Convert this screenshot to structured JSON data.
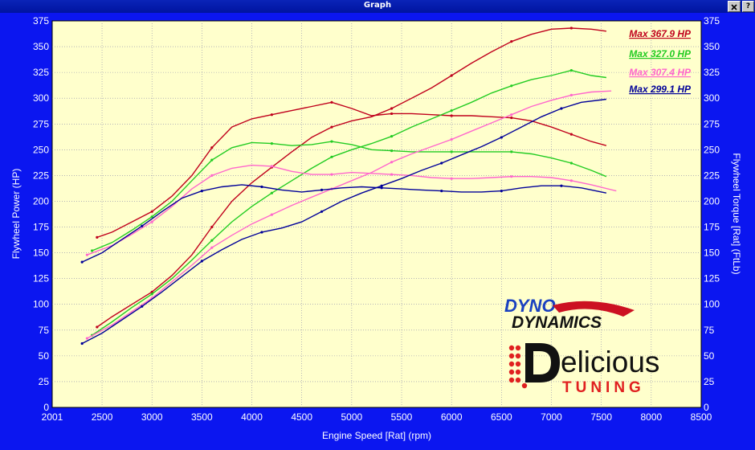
{
  "window": {
    "title": "Graph"
  },
  "chart_data": {
    "type": "line",
    "xlabel": "Engine Speed [Rat] (rpm)",
    "ylabel_left": "Flywheel Power (HP)",
    "ylabel_right": "Flywheel Torque [Rat] (FtLb)",
    "xlim": [
      2001,
      8500
    ],
    "ylim": [
      0,
      375
    ],
    "x_ticks": [
      "2001",
      "2500",
      "3000",
      "3500",
      "4000",
      "4500",
      "5000",
      "5500",
      "6000",
      "6500",
      "7000",
      "7500",
      "8000",
      "8500"
    ],
    "y_ticks": [
      "0",
      "25",
      "50",
      "75",
      "100",
      "125",
      "150",
      "175",
      "200",
      "225",
      "250",
      "275",
      "300",
      "325",
      "350",
      "375"
    ],
    "background": "#ffffcc",
    "grid": true,
    "legend_position": "top-right",
    "legend": [
      {
        "text": "Max 367.9 HP",
        "color": "#c0001c"
      },
      {
        "text": "Max 327.0 HP",
        "color": "#22cc22"
      },
      {
        "text": "Max 307.4 HP",
        "color": "#ff66cc"
      },
      {
        "text": "Max 299.1 HP",
        "color": "#000099"
      }
    ],
    "series": [
      {
        "color": "#c0001c",
        "power": [
          [
            2450,
            78
          ],
          [
            2600,
            88
          ],
          [
            2800,
            100
          ],
          [
            3000,
            112
          ],
          [
            3200,
            128
          ],
          [
            3400,
            148
          ],
          [
            3600,
            175
          ],
          [
            3800,
            200
          ],
          [
            4000,
            218
          ],
          [
            4200,
            233
          ],
          [
            4400,
            248
          ],
          [
            4600,
            262
          ],
          [
            4800,
            272
          ],
          [
            5000,
            278
          ],
          [
            5200,
            282
          ],
          [
            5400,
            290
          ],
          [
            5600,
            300
          ],
          [
            5800,
            310
          ],
          [
            6000,
            322
          ],
          [
            6200,
            334
          ],
          [
            6400,
            345
          ],
          [
            6600,
            355
          ],
          [
            6800,
            362
          ],
          [
            7000,
            367
          ],
          [
            7200,
            368
          ],
          [
            7400,
            367
          ],
          [
            7550,
            365
          ]
        ],
        "torque": [
          [
            2450,
            165
          ],
          [
            2600,
            170
          ],
          [
            2800,
            180
          ],
          [
            3000,
            190
          ],
          [
            3200,
            205
          ],
          [
            3400,
            225
          ],
          [
            3600,
            252
          ],
          [
            3800,
            272
          ],
          [
            4000,
            280
          ],
          [
            4200,
            284
          ],
          [
            4400,
            288
          ],
          [
            4600,
            292
          ],
          [
            4800,
            296
          ],
          [
            5000,
            290
          ],
          [
            5200,
            283
          ],
          [
            5400,
            285
          ],
          [
            5600,
            285
          ],
          [
            5800,
            284
          ],
          [
            6000,
            283
          ],
          [
            6200,
            283
          ],
          [
            6400,
            282
          ],
          [
            6600,
            281
          ],
          [
            6800,
            278
          ],
          [
            7000,
            272
          ],
          [
            7200,
            265
          ],
          [
            7400,
            258
          ],
          [
            7550,
            254
          ]
        ]
      },
      {
        "color": "#22cc22",
        "power": [
          [
            2400,
            70
          ],
          [
            2600,
            83
          ],
          [
            2800,
            97
          ],
          [
            3000,
            110
          ],
          [
            3200,
            125
          ],
          [
            3400,
            143
          ],
          [
            3600,
            162
          ],
          [
            3800,
            180
          ],
          [
            4000,
            195
          ],
          [
            4200,
            208
          ],
          [
            4400,
            220
          ],
          [
            4600,
            232
          ],
          [
            4800,
            243
          ],
          [
            5000,
            250
          ],
          [
            5200,
            256
          ],
          [
            5400,
            263
          ],
          [
            5600,
            272
          ],
          [
            5800,
            280
          ],
          [
            6000,
            288
          ],
          [
            6200,
            296
          ],
          [
            6400,
            305
          ],
          [
            6600,
            312
          ],
          [
            6800,
            318
          ],
          [
            7000,
            322
          ],
          [
            7200,
            327
          ],
          [
            7400,
            322
          ],
          [
            7550,
            320
          ]
        ],
        "torque": [
          [
            2400,
            152
          ],
          [
            2600,
            160
          ],
          [
            2800,
            172
          ],
          [
            3000,
            185
          ],
          [
            3200,
            200
          ],
          [
            3400,
            220
          ],
          [
            3600,
            240
          ],
          [
            3800,
            252
          ],
          [
            4000,
            257
          ],
          [
            4200,
            256
          ],
          [
            4400,
            254
          ],
          [
            4600,
            255
          ],
          [
            4800,
            258
          ],
          [
            5000,
            255
          ],
          [
            5200,
            250
          ],
          [
            5400,
            249
          ],
          [
            5600,
            248
          ],
          [
            5800,
            248
          ],
          [
            6000,
            248
          ],
          [
            6200,
            248
          ],
          [
            6400,
            248
          ],
          [
            6600,
            248
          ],
          [
            6800,
            246
          ],
          [
            7000,
            242
          ],
          [
            7200,
            237
          ],
          [
            7400,
            230
          ],
          [
            7550,
            224
          ]
        ]
      },
      {
        "color": "#ff66cc",
        "power": [
          [
            2350,
            67
          ],
          [
            2600,
            80
          ],
          [
            2800,
            93
          ],
          [
            3000,
            106
          ],
          [
            3200,
            122
          ],
          [
            3400,
            138
          ],
          [
            3600,
            155
          ],
          [
            3800,
            167
          ],
          [
            4000,
            178
          ],
          [
            4200,
            187
          ],
          [
            4400,
            196
          ],
          [
            4600,
            204
          ],
          [
            4800,
            212
          ],
          [
            5000,
            220
          ],
          [
            5200,
            228
          ],
          [
            5400,
            238
          ],
          [
            5600,
            246
          ],
          [
            5800,
            253
          ],
          [
            6000,
            260
          ],
          [
            6200,
            268
          ],
          [
            6400,
            276
          ],
          [
            6600,
            284
          ],
          [
            6800,
            292
          ],
          [
            7000,
            298
          ],
          [
            7200,
            303
          ],
          [
            7400,
            306
          ],
          [
            7600,
            307
          ]
        ],
        "torque": [
          [
            2350,
            148
          ],
          [
            2600,
            157
          ],
          [
            2800,
            168
          ],
          [
            3000,
            180
          ],
          [
            3200,
            195
          ],
          [
            3400,
            212
          ],
          [
            3600,
            225
          ],
          [
            3800,
            232
          ],
          [
            4000,
            235
          ],
          [
            4200,
            234
          ],
          [
            4400,
            229
          ],
          [
            4600,
            226
          ],
          [
            4800,
            226
          ],
          [
            5000,
            228
          ],
          [
            5200,
            227
          ],
          [
            5400,
            226
          ],
          [
            5600,
            225
          ],
          [
            5800,
            223
          ],
          [
            6000,
            222
          ],
          [
            6200,
            222
          ],
          [
            6400,
            223
          ],
          [
            6600,
            224
          ],
          [
            6800,
            224
          ],
          [
            7000,
            223
          ],
          [
            7200,
            220
          ],
          [
            7400,
            216
          ],
          [
            7650,
            210
          ]
        ]
      },
      {
        "color": "#000099",
        "power": [
          [
            2300,
            62
          ],
          [
            2500,
            72
          ],
          [
            2700,
            85
          ],
          [
            2900,
            98
          ],
          [
            3100,
            112
          ],
          [
            3300,
            127
          ],
          [
            3500,
            142
          ],
          [
            3700,
            153
          ],
          [
            3900,
            163
          ],
          [
            4100,
            170
          ],
          [
            4300,
            174
          ],
          [
            4500,
            180
          ],
          [
            4700,
            190
          ],
          [
            4900,
            200
          ],
          [
            5100,
            208
          ],
          [
            5300,
            215
          ],
          [
            5500,
            222
          ],
          [
            5700,
            230
          ],
          [
            5900,
            237
          ],
          [
            6100,
            245
          ],
          [
            6300,
            253
          ],
          [
            6500,
            262
          ],
          [
            6700,
            272
          ],
          [
            6900,
            282
          ],
          [
            7100,
            290
          ],
          [
            7300,
            296
          ],
          [
            7550,
            299
          ]
        ],
        "torque": [
          [
            2300,
            141
          ],
          [
            2500,
            150
          ],
          [
            2700,
            163
          ],
          [
            2900,
            176
          ],
          [
            3100,
            190
          ],
          [
            3300,
            203
          ],
          [
            3500,
            210
          ],
          [
            3700,
            214
          ],
          [
            3900,
            216
          ],
          [
            4100,
            214
          ],
          [
            4300,
            211
          ],
          [
            4500,
            209
          ],
          [
            4700,
            211
          ],
          [
            4900,
            213
          ],
          [
            5100,
            214
          ],
          [
            5300,
            213
          ],
          [
            5500,
            212
          ],
          [
            5700,
            211
          ],
          [
            5900,
            210
          ],
          [
            6100,
            209
          ],
          [
            6300,
            209
          ],
          [
            6500,
            210
          ],
          [
            6700,
            213
          ],
          [
            6900,
            215
          ],
          [
            7100,
            215
          ],
          [
            7300,
            213
          ],
          [
            7550,
            208
          ]
        ]
      }
    ]
  },
  "logos": {
    "dynodynamics": {
      "line1": "DYNO",
      "line2": "DYNAMICS"
    },
    "delicious": {
      "main": "elicious",
      "sub": "TUNING"
    }
  }
}
